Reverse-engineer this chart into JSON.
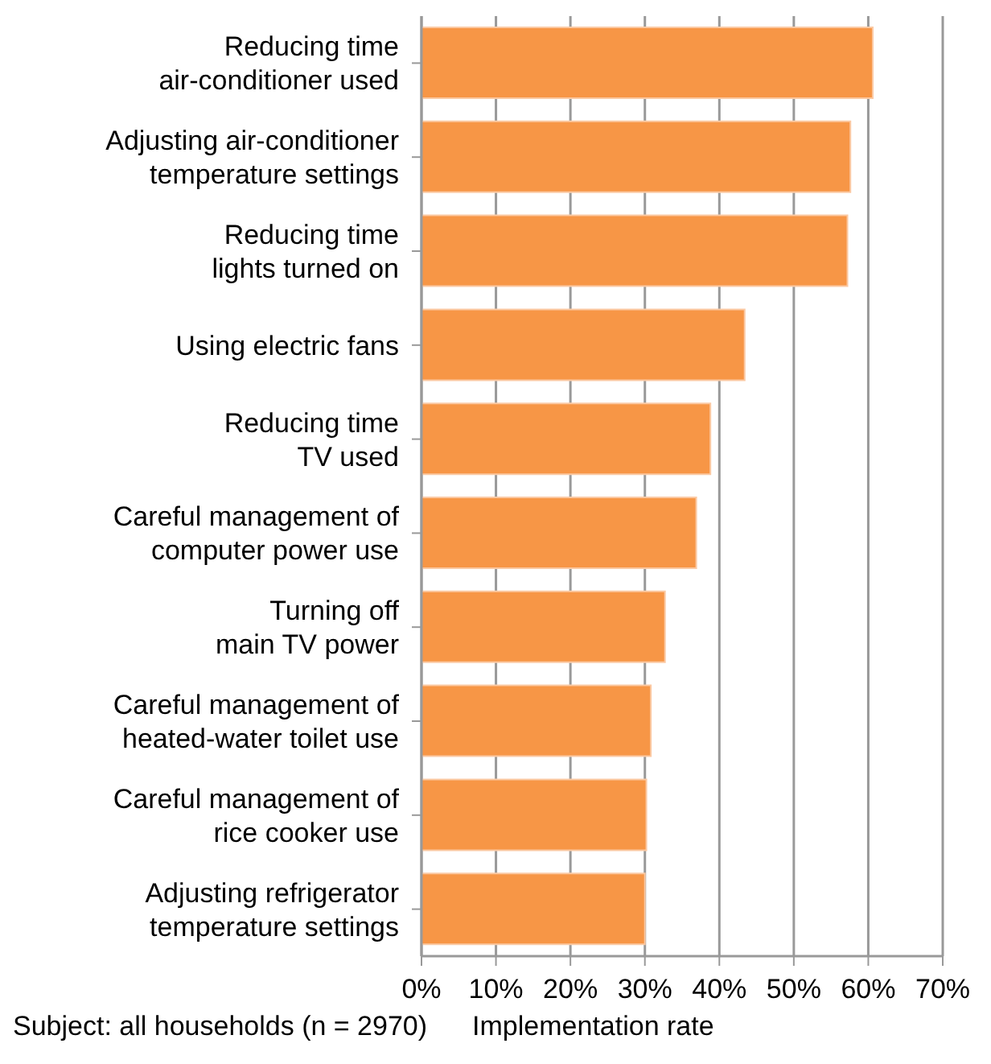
{
  "chart_data": {
    "type": "bar",
    "orientation": "horizontal",
    "xlabel": "Implementation rate",
    "annotations": [
      "Subject: all households (n = 2970)"
    ],
    "categories": [
      "Reducing time\nair-conditioner used",
      "Adjusting air-conditioner\ntemperature settings",
      "Reducing time\nlights turned on",
      "Using electric fans",
      "Reducing time\nTV used",
      "Careful management of\ncomputer power use",
      "Turning off\nmain TV power",
      "Careful management of\nheated-water toilet use",
      "Careful management of\nrice cooker use",
      "Adjusting refrigerator\ntemperature settings"
    ],
    "values": [
      60.6,
      57.6,
      57.2,
      43.4,
      38.8,
      36.9,
      32.7,
      30.8,
      30.2,
      30.0
    ],
    "color": "#f79646",
    "xlim": [
      0,
      70
    ],
    "xticks": [
      {
        "value": 0,
        "label": "0%"
      },
      {
        "value": 10,
        "label": "10%"
      },
      {
        "value": 20,
        "label": "20%"
      },
      {
        "value": 30,
        "label": "30%"
      },
      {
        "value": 40,
        "label": "40%"
      },
      {
        "value": 50,
        "label": "50%"
      },
      {
        "value": 60,
        "label": "60%"
      },
      {
        "value": 70,
        "label": "70%"
      }
    ],
    "grid": "x",
    "legend": false
  }
}
